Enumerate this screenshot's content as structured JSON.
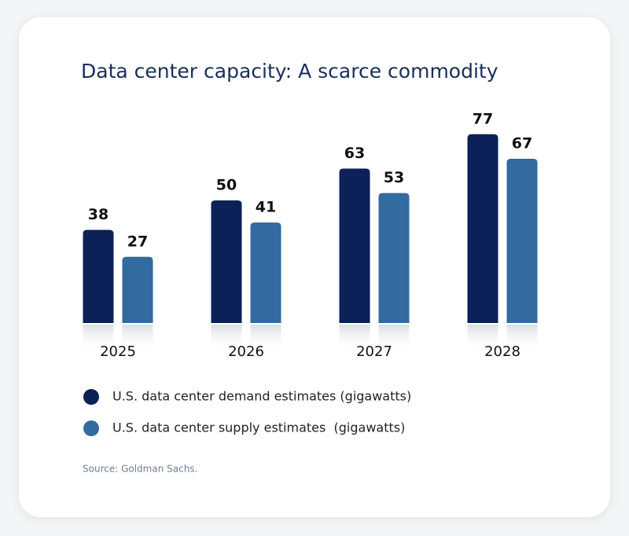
{
  "chart_data": {
    "type": "bar",
    "title": "Data center capacity: A scarce commodity",
    "categories": [
      "2025",
      "2026",
      "2027",
      "2028"
    ],
    "series": [
      {
        "name": "U.S. data center demand estimates (gigawatts)",
        "color": "#0b2157",
        "values": [
          38,
          50,
          63,
          77
        ]
      },
      {
        "name": "U.S. data center supply estimates  (gigawatts)",
        "color": "#336a9f",
        "values": [
          27,
          41,
          53,
          67
        ]
      }
    ],
    "source": "Source: Goldman Sachs."
  }
}
